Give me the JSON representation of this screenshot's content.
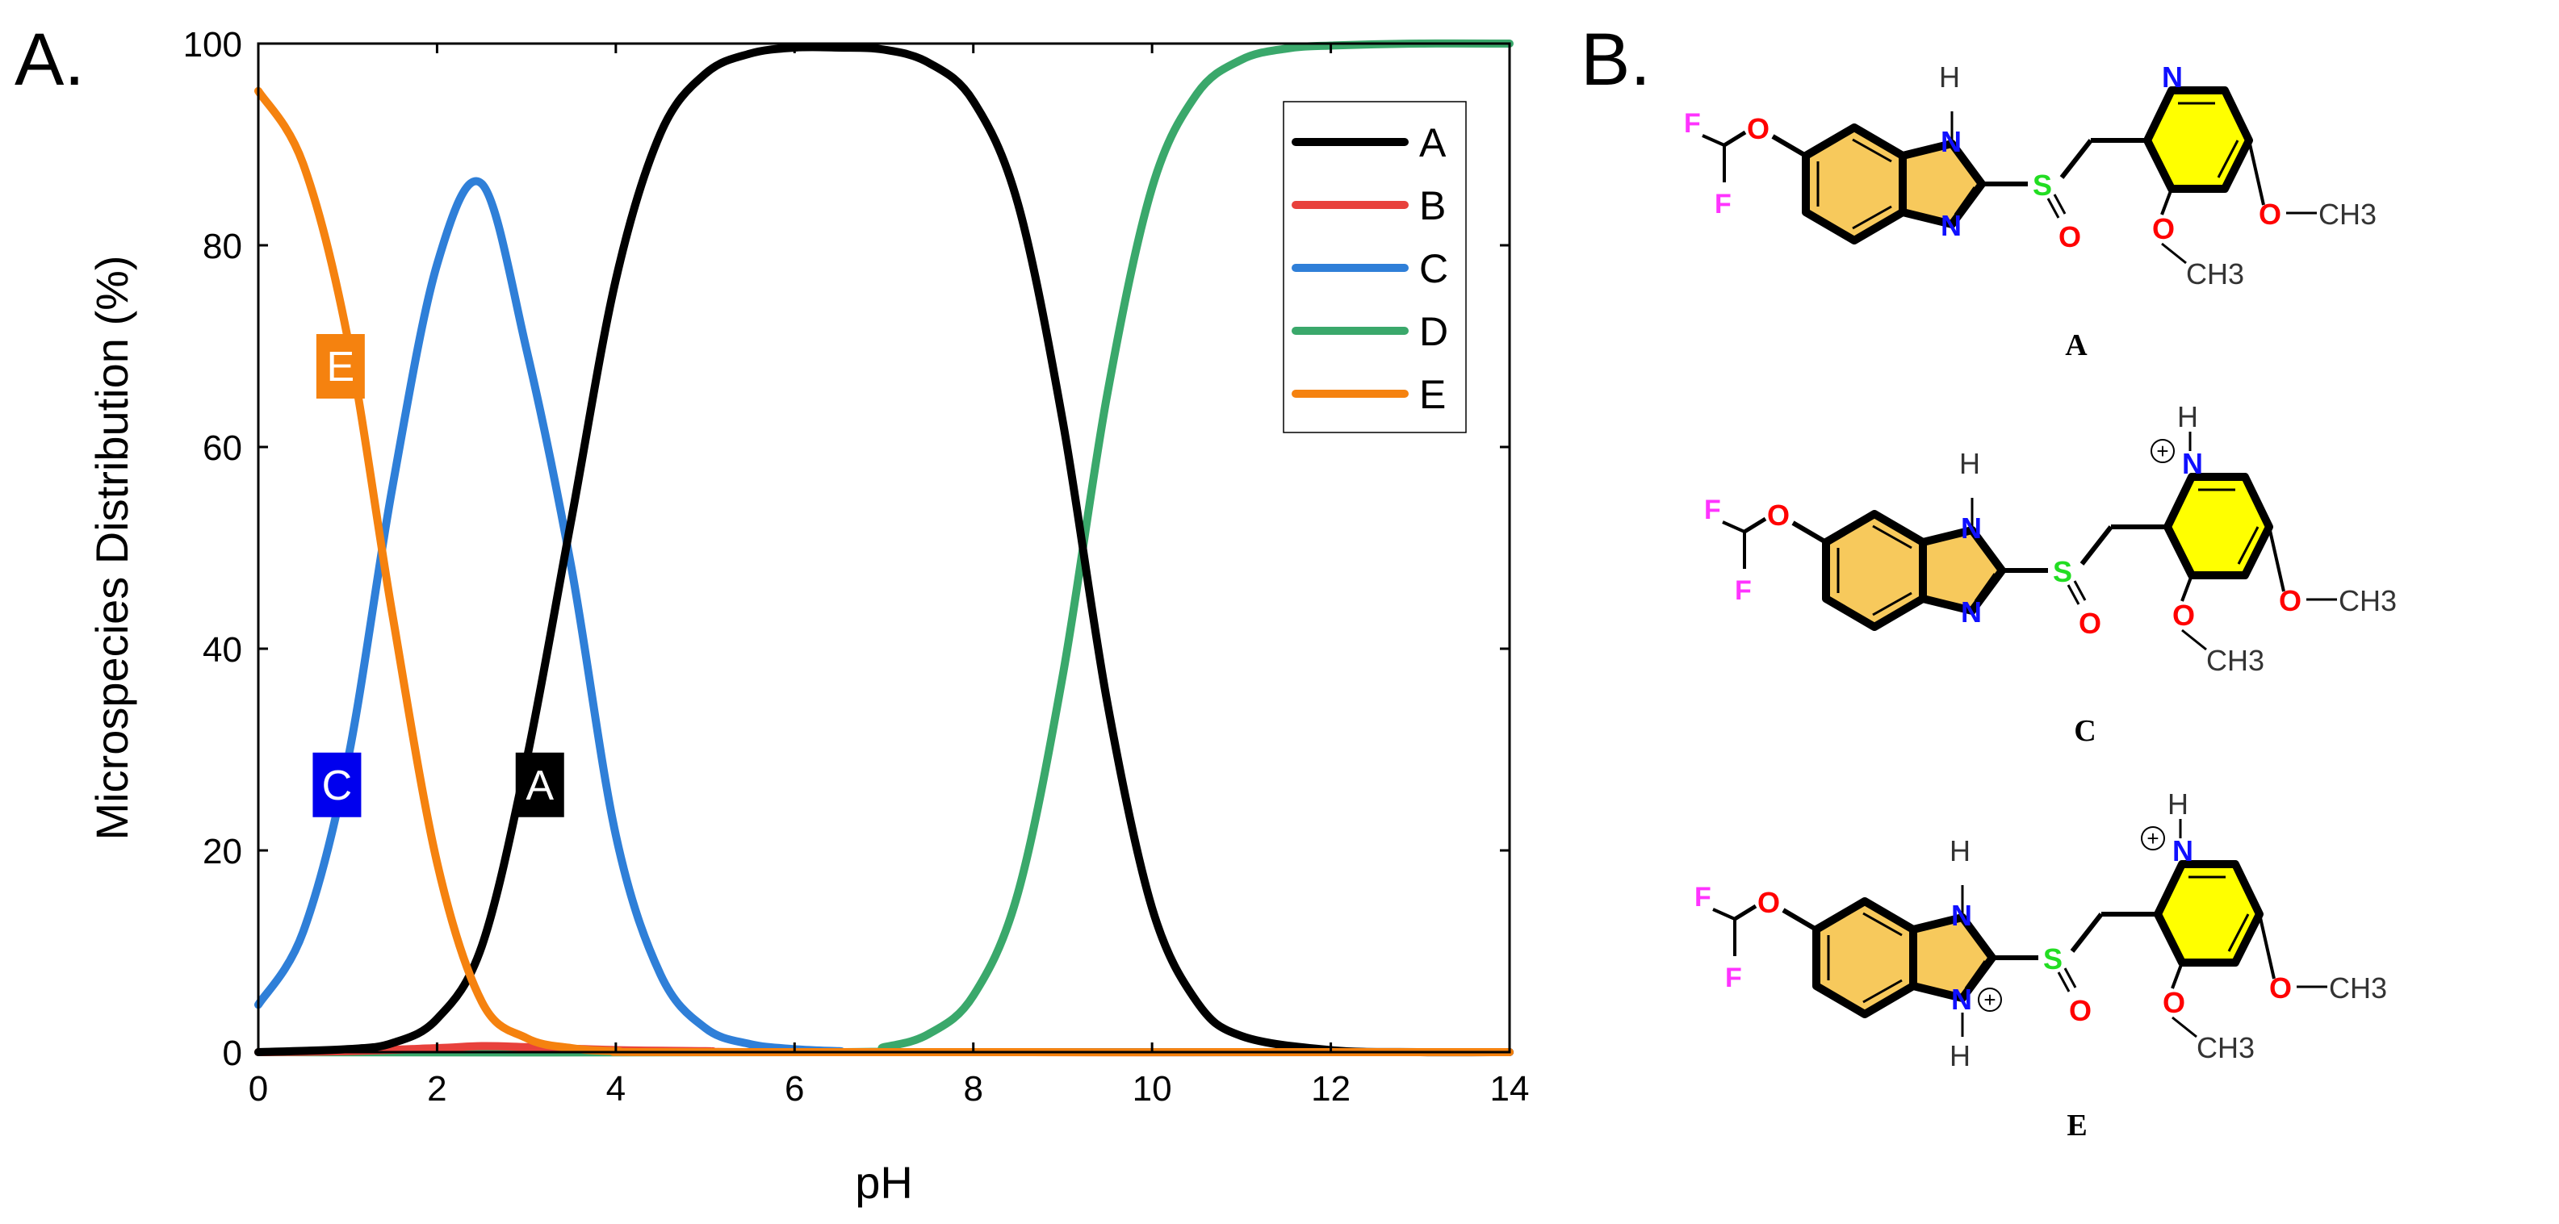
{
  "panel_a_label": "A.",
  "panel_b_label": "B.",
  "colors": {
    "A": "#000000",
    "B": "#e8413c",
    "C": "#2f7fd8",
    "D": "#3aa86b",
    "E": "#f5820f",
    "C_tag": "#0000ee",
    "ring": "#f7c95c",
    "pyr": "#ffff00",
    "N": "#1010ff",
    "O": "#ff0000",
    "S": "#22dd22",
    "F": "#ff33ff"
  },
  "chart_data": {
    "type": "line",
    "title": "",
    "xlabel": "pH",
    "ylabel": "Microspecies Distribution (%)",
    "xlim": [
      0,
      14
    ],
    "ylim": [
      0,
      100
    ],
    "xticks": [
      0,
      2,
      4,
      6,
      8,
      10,
      12,
      14
    ],
    "yticks": [
      0,
      20,
      40,
      60,
      80,
      100
    ],
    "legend_position": "top-right",
    "series": [
      {
        "name": "A",
        "x": [
          0,
          1,
          1.5,
          2,
          2.5,
          3,
          3.5,
          4,
          4.5,
          5,
          5.5,
          6,
          6.5,
          7,
          7.5,
          8,
          8.5,
          9,
          9.5,
          10,
          10.5,
          11,
          12,
          13,
          14
        ],
        "y": [
          0.0,
          0.3,
          0.9,
          3.3,
          10.5,
          28.9,
          52.7,
          76.6,
          91.1,
          97.0,
          99.0,
          99.6,
          99.6,
          99.4,
          98.1,
          94.3,
          84.1,
          62.6,
          34.6,
          14.3,
          5.0,
          1.6,
          0.2,
          0.0,
          0.0
        ]
      },
      {
        "name": "B",
        "x": [
          0,
          1,
          2,
          2.5,
          3,
          4,
          5,
          6,
          14
        ],
        "y": [
          0.0,
          0.1,
          0.4,
          0.6,
          0.5,
          0.2,
          0.1,
          0.0,
          0.0
        ]
      },
      {
        "name": "C",
        "x": [
          0,
          0.5,
          1,
          1.5,
          2,
          2.5,
          3,
          3.5,
          4,
          4.5,
          5,
          5.5,
          6,
          6.5,
          7,
          14
        ],
        "y": [
          4.7,
          11.9,
          28.9,
          56.0,
          78.1,
          86.1,
          69.7,
          48.2,
          21.5,
          7.7,
          2.4,
          0.8,
          0.3,
          0.1,
          0.0,
          0.0
        ]
      },
      {
        "name": "D",
        "x": [
          0,
          6.5,
          7,
          7.5,
          8,
          8.5,
          9,
          9.5,
          10,
          10.5,
          11,
          11.5,
          12,
          13,
          14
        ],
        "y": [
          0.0,
          0.0,
          0.5,
          1.8,
          5.6,
          15.8,
          37.3,
          65.3,
          85.7,
          95.0,
          98.4,
          99.5,
          99.8,
          100.0,
          100.0
        ]
      },
      {
        "name": "E",
        "x": [
          0,
          0.5,
          1,
          1.5,
          2,
          2.5,
          3,
          3.5,
          4,
          5,
          14
        ],
        "y": [
          95.3,
          88.1,
          70.8,
          43.4,
          18.8,
          5.0,
          1.4,
          0.4,
          0.1,
          0.0,
          0.0
        ]
      }
    ],
    "annotations": [
      {
        "text": "E",
        "x": 0.92,
        "y": 68,
        "series": "E"
      },
      {
        "text": "C",
        "x": 0.88,
        "y": 26.5,
        "series": "C"
      },
      {
        "text": "A",
        "x": 3.15,
        "y": 26.5,
        "series": "A"
      }
    ]
  },
  "structures": {
    "atoms": {
      "N": "N",
      "H": "H",
      "O": "O",
      "S": "S",
      "F": "F",
      "CH3": "CH3",
      "plus": "+"
    },
    "captions": [
      "A",
      "C",
      "E"
    ]
  }
}
